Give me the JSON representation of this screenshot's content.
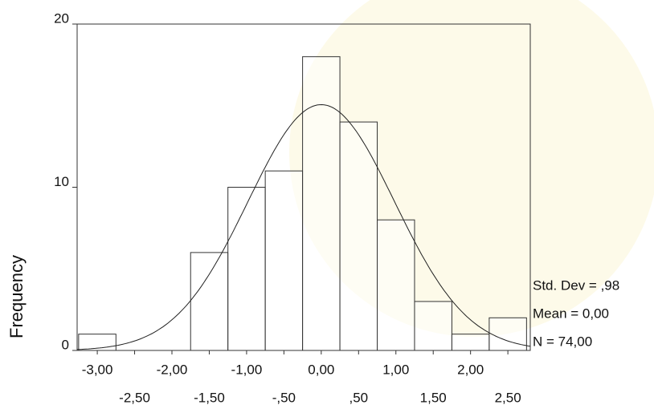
{
  "chart_data": {
    "type": "histogram",
    "y_label": "Frequency",
    "bins": [
      -3.25,
      -2.75,
      -2.25,
      -1.75,
      -1.25,
      -0.75,
      -0.25,
      0.25,
      0.75,
      1.25,
      1.75,
      2.25,
      2.75
    ],
    "values": [
      1,
      0,
      0,
      6,
      10,
      11,
      18,
      14,
      8,
      3,
      1,
      2
    ],
    "color": "#ffffff",
    "xlim": [
      -3.27,
      2.8
    ],
    "ylim": [
      0,
      20
    ],
    "xticks": [
      {
        "value": -3,
        "label": "-3,00"
      },
      {
        "value": -2.5,
        "label": "-2,50"
      },
      {
        "value": -2,
        "label": "-2,00"
      },
      {
        "value": -1.5,
        "label": "-1,50"
      },
      {
        "value": -1,
        "label": "-1,00"
      },
      {
        "value": -0.5,
        "label": "-,50"
      },
      {
        "value": 0,
        "label": "0,00"
      },
      {
        "value": 0.5,
        "label": ",50"
      },
      {
        "value": 1,
        "label": "1,00"
      },
      {
        "value": 1.5,
        "label": "1,50"
      },
      {
        "value": 2,
        "label": "2,00"
      },
      {
        "value": 2.5,
        "label": "2,50"
      }
    ],
    "yticks": [
      0,
      10,
      20
    ],
    "stats": {
      "std": {
        "value": 0.98,
        "label": "Std. Dev = ,98"
      },
      "mean": {
        "value": 0,
        "label": "Mean = 0,00"
      },
      "n": {
        "value": 74,
        "label": "N = 74,00"
      }
    }
  }
}
